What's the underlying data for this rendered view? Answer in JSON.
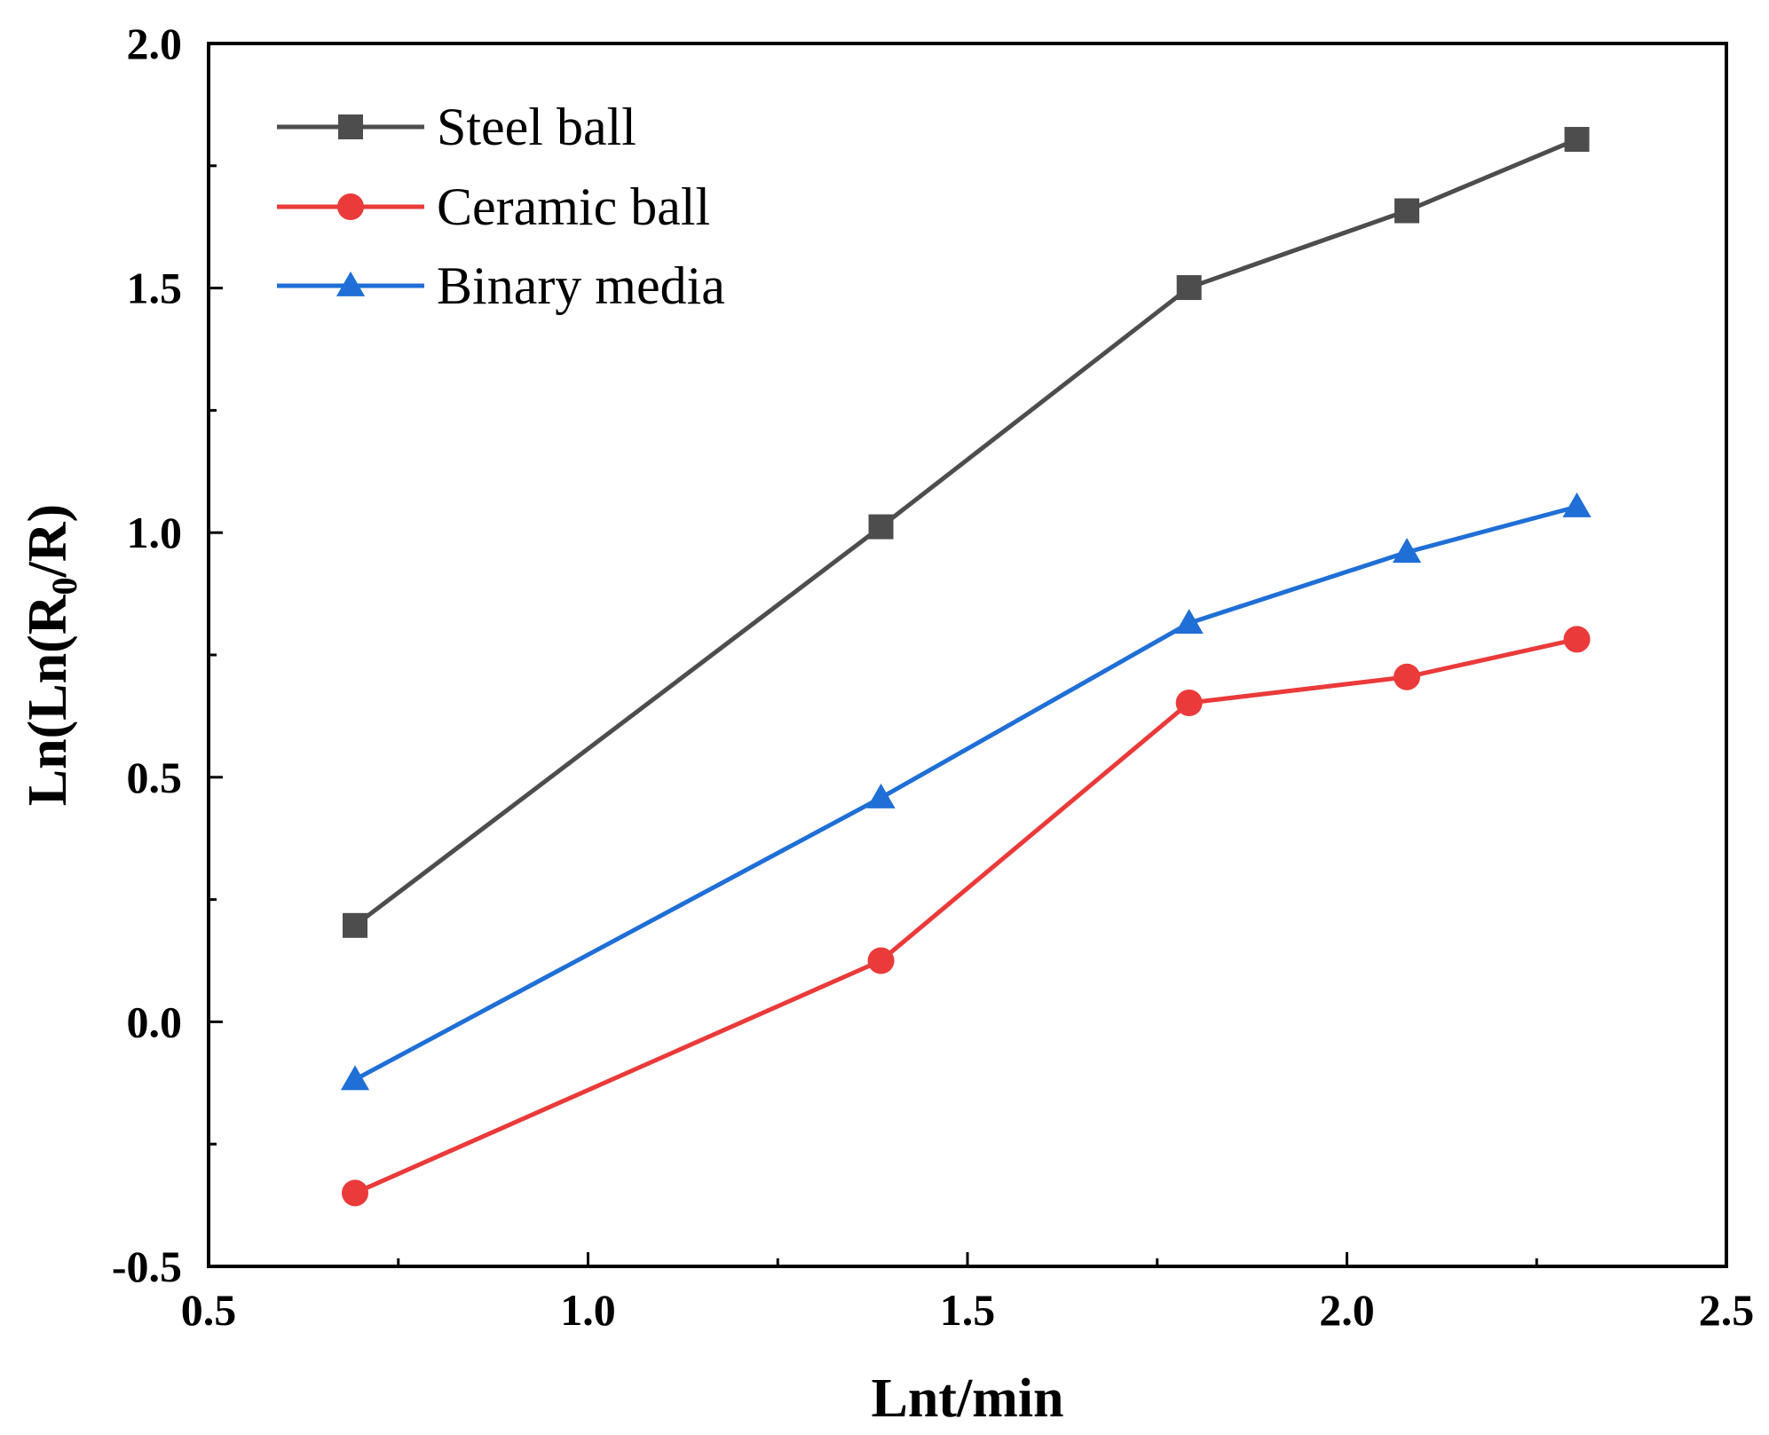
{
  "chart_data": {
    "type": "line",
    "title": "",
    "xlabel": "Lnt/min",
    "ylabel_main": "Ln(Ln(R",
    "ylabel_sub": "0",
    "ylabel_tail": "/R)",
    "xlim": [
      0.5,
      2.5
    ],
    "ylim": [
      -0.5,
      2.0
    ],
    "x_ticks": [
      "0.5",
      "1.0",
      "1.5",
      "2.0",
      "2.5"
    ],
    "y_ticks": [
      "-0.5",
      "0.0",
      "0.5",
      "1.0",
      "1.5",
      "2.0"
    ],
    "x_tick_values": [
      0.5,
      1.0,
      1.5,
      2.0,
      2.5
    ],
    "y_tick_values": [
      -0.5,
      0.0,
      0.5,
      1.0,
      1.5,
      2.0
    ],
    "x_minor_ticks": [
      0.75,
      1.25,
      1.75,
      2.25
    ],
    "y_minor_ticks": [
      -0.25,
      0.25,
      0.75,
      1.25,
      1.75
    ],
    "grid": false,
    "legend_position": "top-left",
    "x": [
      0.693,
      1.386,
      1.792,
      2.079,
      2.303
    ],
    "series": [
      {
        "name": "Steel ball",
        "values": [
          0.197,
          1.012,
          1.501,
          1.658,
          1.804
        ],
        "color": "#4d4d4d",
        "marker": "square"
      },
      {
        "name": "Ceramic ball",
        "values": [
          -0.35,
          0.125,
          0.652,
          0.705,
          0.782
        ],
        "color": "#ea3a3a",
        "marker": "circle"
      },
      {
        "name": "Binary media",
        "values": [
          -0.118,
          0.458,
          0.815,
          0.96,
          1.053
        ],
        "color": "#1f6fd6",
        "marker": "triangle"
      }
    ]
  }
}
